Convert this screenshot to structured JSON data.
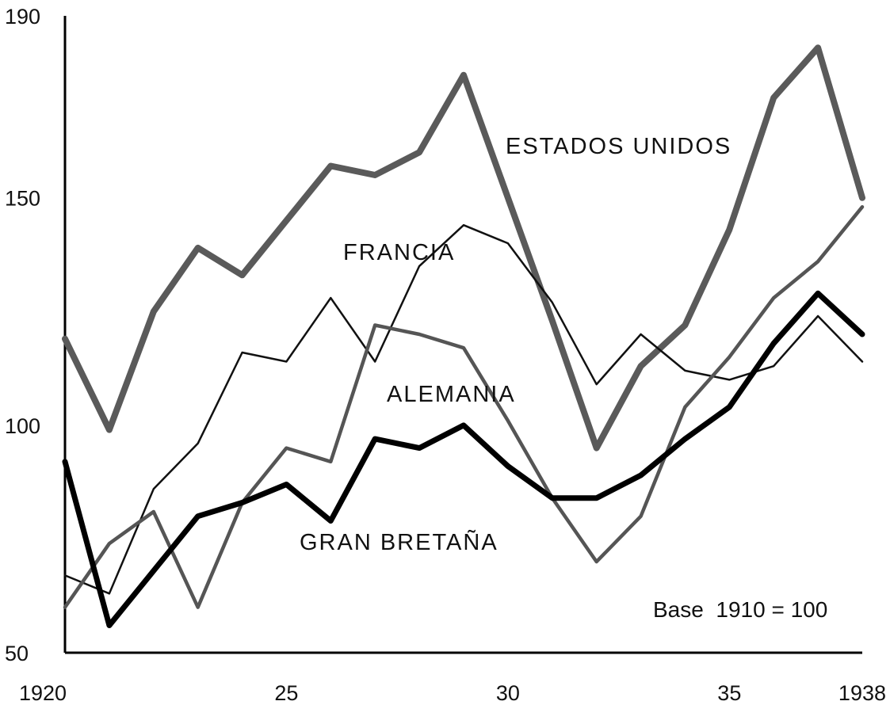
{
  "chart_data": {
    "type": "line",
    "note": "Base  1910 = 100",
    "xlim": [
      1920,
      1938
    ],
    "ylim": [
      50,
      190
    ],
    "x_ticks": [
      {
        "value": 1920,
        "label": "1920"
      },
      {
        "value": 1925,
        "label": "25"
      },
      {
        "value": 1930,
        "label": "30"
      },
      {
        "value": 1935,
        "label": "35"
      },
      {
        "value": 1938,
        "label": "1938"
      }
    ],
    "y_ticks": [
      {
        "value": 190,
        "label": "190"
      },
      {
        "value": 150,
        "label": "150"
      },
      {
        "value": 100,
        "label": "100"
      },
      {
        "value": 50,
        "label": "50"
      }
    ],
    "x": [
      1920,
      1921,
      1922,
      1923,
      1924,
      1925,
      1926,
      1927,
      1928,
      1929,
      1930,
      1931,
      1932,
      1933,
      1934,
      1935,
      1936,
      1937,
      1938
    ],
    "series": [
      {
        "name": "ESTADOS UNIDOS",
        "color": "#5a5a5a",
        "width": 8,
        "values": [
          119,
          99,
          125,
          139,
          133,
          145,
          157,
          155,
          160,
          177,
          150,
          123,
          95,
          113,
          122,
          143,
          172,
          183,
          150
        ]
      },
      {
        "name": "FRANCIA",
        "color": "#111111",
        "width": 2.5,
        "values": [
          67,
          63,
          86,
          96,
          116,
          114,
          128,
          114,
          135,
          144,
          140,
          127,
          109,
          120,
          112,
          110,
          113,
          124,
          114
        ]
      },
      {
        "name": "ALEMANIA",
        "color": "#555555",
        "width": 4.5,
        "values": [
          60,
          74,
          81,
          60,
          83,
          95,
          92,
          122,
          120,
          117,
          101,
          84,
          70,
          80,
          104,
          115,
          128,
          136,
          148
        ]
      },
      {
        "name": "GRAN BRETAÑA",
        "color": "#000000",
        "width": 7,
        "values": [
          92,
          56,
          68,
          80,
          83,
          87,
          79,
          97,
          95,
          100,
          91,
          84,
          84,
          89,
          97,
          104,
          118,
          129,
          120
        ]
      }
    ]
  }
}
